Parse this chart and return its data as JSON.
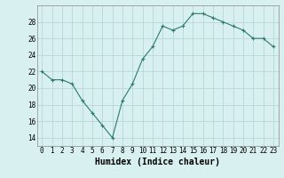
{
  "x": [
    0,
    1,
    2,
    3,
    4,
    5,
    6,
    7,
    8,
    9,
    10,
    11,
    12,
    13,
    14,
    15,
    16,
    17,
    18,
    19,
    20,
    21,
    22,
    23
  ],
  "y": [
    22,
    21,
    21,
    20.5,
    18.5,
    17,
    15.5,
    14,
    18.5,
    20.5,
    23.5,
    25,
    27.5,
    27,
    27.5,
    29,
    29,
    28.5,
    28,
    27.5,
    27,
    26,
    26,
    25
  ],
  "line_color": "#2d7a6e",
  "marker": "+",
  "bg_color": "#d8f0f0",
  "grid_color": "#b8d8d8",
  "xlabel": "Humidex (Indice chaleur)",
  "xlim": [
    -0.5,
    23.5
  ],
  "ylim": [
    13,
    30
  ],
  "yticks": [
    14,
    16,
    18,
    20,
    22,
    24,
    26,
    28
  ],
  "xticks": [
    0,
    1,
    2,
    3,
    4,
    5,
    6,
    7,
    8,
    9,
    10,
    11,
    12,
    13,
    14,
    15,
    16,
    17,
    18,
    19,
    20,
    21,
    22,
    23
  ],
  "tick_fontsize": 5.5,
  "xlabel_fontsize": 7
}
